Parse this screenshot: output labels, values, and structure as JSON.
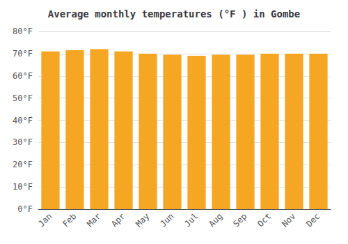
{
  "chart_data": {
    "type": "bar",
    "title": "Average monthly temperatures (°F ) in Gombe",
    "categories": [
      "Jan",
      "Feb",
      "Mar",
      "Apr",
      "May",
      "Jun",
      "Jul",
      "Aug",
      "Sep",
      "Oct",
      "Nov",
      "Dec"
    ],
    "values": [
      71,
      71.5,
      72,
      71,
      70,
      69.5,
      69,
      69.5,
      69.5,
      70,
      70,
      70
    ],
    "color": "#F5A623",
    "ylim": [
      0,
      80
    ],
    "yticks": [
      {
        "value": 0,
        "label": "0°F"
      },
      {
        "value": 10,
        "label": "10°F"
      },
      {
        "value": 20,
        "label": "20°F"
      },
      {
        "value": 30,
        "label": "30°F"
      },
      {
        "value": 40,
        "label": "40°F"
      },
      {
        "value": 50,
        "label": "50°F"
      },
      {
        "value": 60,
        "label": "60°F"
      },
      {
        "value": 70,
        "label": "70°F"
      },
      {
        "value": 80,
        "label": "80°F"
      }
    ],
    "grid": true
  }
}
